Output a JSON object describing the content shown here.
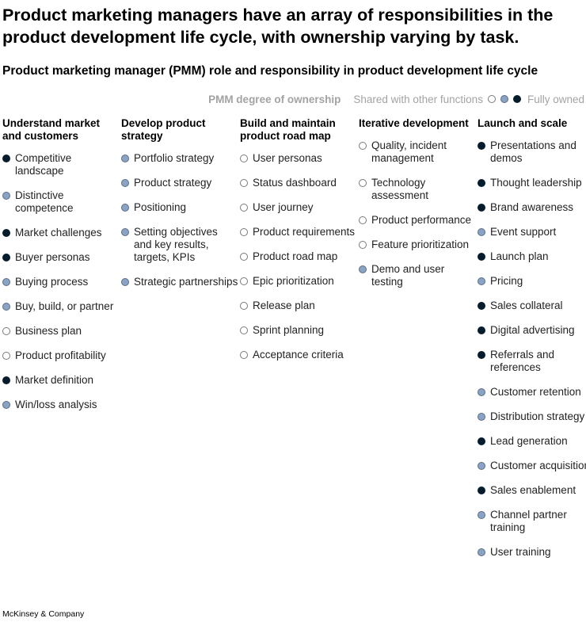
{
  "title": "Product marketing managers have an array of responsibilities in the product development life cycle, with ownership varying by task.",
  "subtitle": "Product marketing manager (PMM) role and responsibility in product development life cycle",
  "legend": {
    "title": "PMM degree of ownership",
    "shared_label": "Shared with other functions",
    "full_label": "Fully owned",
    "levels": [
      "shared",
      "partial",
      "full"
    ]
  },
  "colors": {
    "full": "#051c2c",
    "partial": "#8aa2c4",
    "shared": "#ffffff",
    "legend_text": "#a3a3a3"
  },
  "columns": [
    {
      "heading": "Understand market and customers",
      "items": [
        {
          "label": "Competitive landscape",
          "level": "full"
        },
        {
          "label": "Distinctive competence",
          "level": "partial"
        },
        {
          "label": "Market challenges",
          "level": "full"
        },
        {
          "label": "Buyer personas",
          "level": "full"
        },
        {
          "label": "Buying process",
          "level": "partial"
        },
        {
          "label": "Buy, build, or partner",
          "level": "partial"
        },
        {
          "label": "Business plan",
          "level": "shared"
        },
        {
          "label": "Product profitability",
          "level": "shared"
        },
        {
          "label": "Market definition",
          "level": "full"
        },
        {
          "label": "Win/loss analysis",
          "level": "partial"
        }
      ]
    },
    {
      "heading": "Develop product strategy",
      "items": [
        {
          "label": "Portfolio strategy",
          "level": "partial"
        },
        {
          "label": "Product strategy",
          "level": "partial"
        },
        {
          "label": "Positioning",
          "level": "partial"
        },
        {
          "label": "Setting objectives and key results, targets, KPIs",
          "level": "partial"
        },
        {
          "label": "Strategic partnerships",
          "level": "partial"
        }
      ]
    },
    {
      "heading": "Build and maintain product road map",
      "items": [
        {
          "label": "User personas",
          "level": "shared"
        },
        {
          "label": "Status dashboard",
          "level": "shared"
        },
        {
          "label": "User journey",
          "level": "shared"
        },
        {
          "label": "Product requirements",
          "level": "shared"
        },
        {
          "label": "Product road map",
          "level": "shared"
        },
        {
          "label": "Epic prioritization",
          "level": "shared"
        },
        {
          "label": "Release plan",
          "level": "shared"
        },
        {
          "label": "Sprint planning",
          "level": "shared"
        },
        {
          "label": "Acceptance criteria",
          "level": "shared"
        }
      ]
    },
    {
      "heading": "Iterative development",
      "items": [
        {
          "label": "Quality, incident management",
          "level": "shared"
        },
        {
          "label": "Technology assessment",
          "level": "shared"
        },
        {
          "label": "Product performance",
          "level": "shared"
        },
        {
          "label": "Feature prioritization",
          "level": "shared"
        },
        {
          "label": "Demo and user testing",
          "level": "partial"
        }
      ]
    },
    {
      "heading": "Launch and scale",
      "items": [
        {
          "label": "Presentations and demos",
          "level": "full"
        },
        {
          "label": "Thought leadership",
          "level": "full"
        },
        {
          "label": "Brand awareness",
          "level": "full"
        },
        {
          "label": "Event support",
          "level": "partial"
        },
        {
          "label": "Launch plan",
          "level": "full"
        },
        {
          "label": "Pricing",
          "level": "partial"
        },
        {
          "label": "Sales collateral",
          "level": "full"
        },
        {
          "label": "Digital advertising",
          "level": "full"
        },
        {
          "label": "Referrals and references",
          "level": "full"
        },
        {
          "label": "Customer retention",
          "level": "partial"
        },
        {
          "label": "Distribution strategy",
          "level": "partial"
        },
        {
          "label": "Lead generation",
          "level": "full"
        },
        {
          "label": "Customer acquisition",
          "level": "partial"
        },
        {
          "label": "Sales enablement",
          "level": "full"
        },
        {
          "label": "Channel partner training",
          "level": "partial"
        },
        {
          "label": "User training",
          "level": "partial"
        }
      ]
    }
  ],
  "source": "McKinsey & Company"
}
